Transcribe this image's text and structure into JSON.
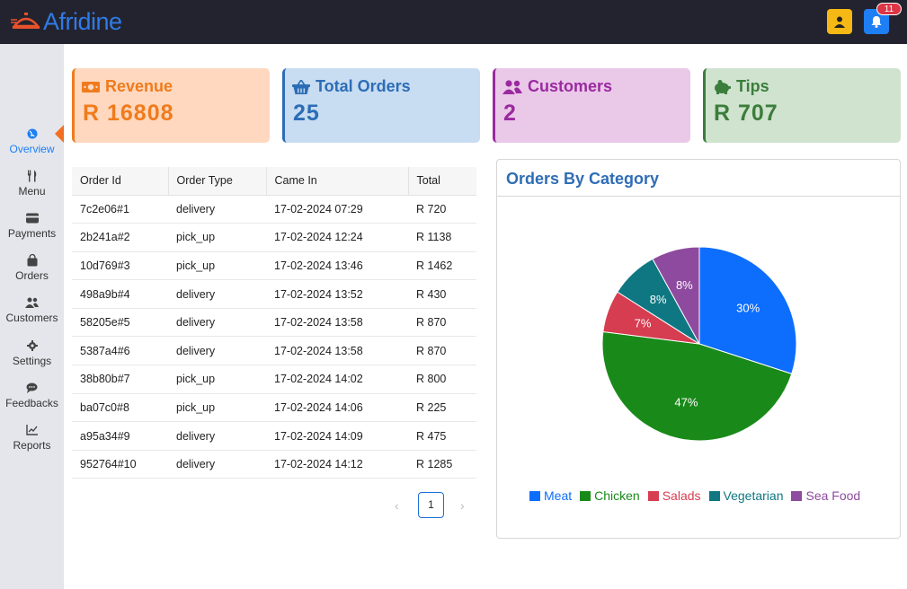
{
  "header": {
    "logo_text": "Afridine",
    "notification_count": "11"
  },
  "sidebar": {
    "items": [
      {
        "label": "Overview",
        "icon": "globe-icon"
      },
      {
        "label": "Menu",
        "icon": "utensils-icon"
      },
      {
        "label": "Payments",
        "icon": "credit-card-icon"
      },
      {
        "label": "Orders",
        "icon": "shopping-bag-icon"
      },
      {
        "label": "Customers",
        "icon": "users-icon"
      },
      {
        "label": "Settings",
        "icon": "gear-icon"
      },
      {
        "label": "Feedbacks",
        "icon": "comments-icon"
      },
      {
        "label": "Reports",
        "icon": "line-chart-icon"
      }
    ]
  },
  "cards": [
    {
      "title": "Revenue",
      "value": "R 16808",
      "icon": "money-icon",
      "color": "#f07b1c",
      "bg": "#ffd8bf"
    },
    {
      "title": "Total Orders",
      "value": "25",
      "icon": "basket-icon",
      "color": "#2c6db5",
      "bg": "#c8dcf2"
    },
    {
      "title": "Customers",
      "value": "2",
      "icon": "users-icon",
      "color": "#9a2aa0",
      "bg": "#eac8e8"
    },
    {
      "title": "Tips",
      "value": "R 707",
      "icon": "piggy-bank-icon",
      "color": "#3b7d3b",
      "bg": "#cfe3cf"
    }
  ],
  "orders_table": {
    "headers": [
      "Order Id",
      "Order Type",
      "Came In",
      "Total"
    ],
    "rows": [
      [
        "7c2e06#1",
        "delivery",
        "17-02-2024 07:29",
        "R 720"
      ],
      [
        "2b241a#2",
        "pick_up",
        "17-02-2024 12:24",
        "R 1138"
      ],
      [
        "10d769#3",
        "pick_up",
        "17-02-2024 13:46",
        "R 1462"
      ],
      [
        "498a9b#4",
        "delivery",
        "17-02-2024 13:52",
        "R 430"
      ],
      [
        "58205e#5",
        "delivery",
        "17-02-2024 13:58",
        "R 870"
      ],
      [
        "5387a4#6",
        "delivery",
        "17-02-2024 13:58",
        "R 870"
      ],
      [
        "38b80b#7",
        "pick_up",
        "17-02-2024 14:02",
        "R 800"
      ],
      [
        "ba07c0#8",
        "pick_up",
        "17-02-2024 14:06",
        "R 225"
      ],
      [
        "a95a34#9",
        "delivery",
        "17-02-2024 14:09",
        "R 475"
      ],
      [
        "952764#10",
        "delivery",
        "17-02-2024 14:12",
        "R 1285"
      ]
    ]
  },
  "pagination": {
    "current_page": "1",
    "prev": "‹",
    "next": "›"
  },
  "chart_data": {
    "type": "pie",
    "title": "Orders By Category",
    "categories": [
      "Meat",
      "Chicken",
      "Salads",
      "Vegetarian",
      "Sea Food"
    ],
    "values": [
      30,
      47,
      7,
      8,
      8
    ],
    "labels": [
      "30%",
      "47%",
      "7%",
      "8%",
      "8%"
    ],
    "colors": [
      "#0d6efd",
      "#198a19",
      "#d63d50",
      "#0f7782",
      "#8e4a9e"
    ],
    "legend": "bottom"
  }
}
